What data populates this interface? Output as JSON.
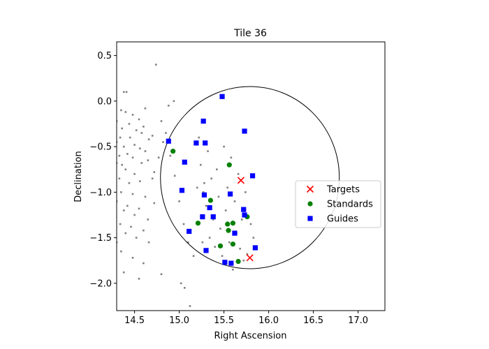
{
  "chart_data": {
    "type": "scatter",
    "title": "Tile 36",
    "xlabel": "Right Ascension",
    "ylabel": "Declination",
    "xlim": [
      14.3,
      17.3
    ],
    "ylim": [
      -2.3,
      0.65
    ],
    "xticks": [
      14.5,
      15.0,
      15.5,
      16.0,
      16.5,
      17.0
    ],
    "xtick_labels": [
      "14.5",
      "15.0",
      "15.5",
      "16.0",
      "16.5",
      "17.0"
    ],
    "yticks": [
      0.5,
      0.0,
      -0.5,
      -1.0,
      -1.5,
      -2.0
    ],
    "ytick_labels": [
      "0.5",
      "0.0",
      "−0.5",
      "−1.0",
      "−1.5",
      "−2.0"
    ],
    "grid": false,
    "legend_position": "right",
    "tile_circle": {
      "center": [
        15.79,
        -0.84
      ],
      "radius": 1.0
    },
    "background_points": {
      "color": "#808080",
      "points": [
        [
          14.74,
          0.4
        ],
        [
          14.38,
          0.1
        ],
        [
          14.41,
          0.1
        ],
        [
          14.94,
          0.0
        ],
        [
          14.88,
          -0.05
        ],
        [
          14.62,
          -0.08
        ],
        [
          14.35,
          -0.1
        ],
        [
          14.4,
          -0.12
        ],
        [
          14.48,
          -0.15
        ],
        [
          14.55,
          -0.2
        ],
        [
          14.3,
          -0.22
        ],
        [
          14.44,
          -0.25
        ],
        [
          14.6,
          -0.28
        ],
        [
          14.8,
          -0.22
        ],
        [
          14.36,
          -0.3
        ],
        [
          14.52,
          -0.32
        ],
        [
          14.58,
          -0.35
        ],
        [
          14.7,
          -0.38
        ],
        [
          14.34,
          -0.4
        ],
        [
          14.45,
          -0.4
        ],
        [
          14.66,
          -0.42
        ],
        [
          14.3,
          -0.45
        ],
        [
          14.38,
          -0.5
        ],
        [
          14.5,
          -0.48
        ],
        [
          14.56,
          -0.52
        ],
        [
          14.62,
          -0.55
        ],
        [
          14.42,
          -0.58
        ],
        [
          14.33,
          -0.6
        ],
        [
          14.48,
          -0.62
        ],
        [
          14.3,
          -0.68
        ],
        [
          14.36,
          -0.7
        ],
        [
          14.58,
          -0.68
        ],
        [
          14.65,
          -0.65
        ],
        [
          14.4,
          -0.75
        ],
        [
          14.5,
          -0.8
        ],
        [
          14.33,
          -0.85
        ],
        [
          14.44,
          -0.9
        ],
        [
          14.56,
          -0.88
        ],
        [
          14.7,
          -0.85
        ],
        [
          14.35,
          -1.0
        ],
        [
          14.48,
          -1.02
        ],
        [
          14.62,
          -1.05
        ],
        [
          14.3,
          -1.1
        ],
        [
          14.42,
          -1.15
        ],
        [
          14.55,
          -1.18
        ],
        [
          14.72,
          -1.12
        ],
        [
          14.38,
          -1.2
        ],
        [
          14.5,
          -1.25
        ],
        [
          14.65,
          -1.3
        ],
        [
          14.34,
          -1.35
        ],
        [
          14.46,
          -1.38
        ],
        [
          14.6,
          -1.42
        ],
        [
          14.4,
          -1.45
        ],
        [
          14.3,
          -1.55
        ],
        [
          14.52,
          -1.5
        ],
        [
          14.66,
          -1.55
        ],
        [
          14.35,
          -1.65
        ],
        [
          14.48,
          -1.72
        ],
        [
          14.6,
          -1.78
        ],
        [
          14.38,
          -1.88
        ],
        [
          14.55,
          -1.95
        ],
        [
          14.8,
          -1.9
        ],
        [
          14.28,
          -2.05
        ],
        [
          14.72,
          -0.78
        ],
        [
          14.77,
          -0.62
        ],
        [
          14.82,
          -0.45
        ],
        [
          14.85,
          -0.35
        ],
        [
          14.9,
          -0.6
        ],
        [
          14.95,
          -0.82
        ],
        [
          15.0,
          -1.1
        ],
        [
          15.05,
          -1.35
        ],
        [
          15.1,
          -1.55
        ],
        [
          15.02,
          -2.0
        ],
        [
          15.06,
          -2.05
        ],
        [
          15.12,
          -2.25
        ],
        [
          15.16,
          -1.7
        ],
        [
          15.2,
          -0.95
        ],
        [
          15.22,
          -0.4
        ],
        [
          15.24,
          -0.7
        ],
        [
          15.27,
          -1.0
        ],
        [
          15.3,
          -1.15
        ],
        [
          15.32,
          -0.55
        ],
        [
          15.34,
          -1.5
        ],
        [
          15.36,
          -0.85
        ],
        [
          15.38,
          -1.3
        ],
        [
          15.4,
          -1.6
        ],
        [
          15.42,
          -0.75
        ],
        [
          15.44,
          -1.05
        ],
        [
          15.46,
          -1.4
        ],
        [
          15.48,
          -1.7
        ],
        [
          15.5,
          -0.5
        ],
        [
          15.52,
          -1.2
        ],
        [
          15.54,
          -0.95
        ],
        [
          15.56,
          -1.55
        ],
        [
          15.58,
          -0.62
        ],
        [
          15.6,
          -1.85
        ],
        [
          15.62,
          -1.1
        ],
        [
          15.64,
          -1.45
        ],
        [
          15.66,
          -0.8
        ],
        [
          15.68,
          -1.62
        ],
        [
          15.7,
          -1.3
        ],
        [
          15.72,
          -1.75
        ],
        [
          15.74,
          -1.0
        ],
        [
          15.76,
          -1.68
        ],
        [
          15.8,
          -1.35
        ],
        [
          15.83,
          -1.5
        ],
        [
          15.26,
          -1.55
        ],
        [
          15.28,
          -0.9
        ]
      ]
    },
    "series": [
      {
        "name": "Targets",
        "marker": "x",
        "color": "#ff0000",
        "points": [
          [
            15.69,
            -0.87
          ],
          [
            15.79,
            -1.72
          ]
        ]
      },
      {
        "name": "Standards",
        "marker": "circle",
        "color": "#008000",
        "points": [
          [
            14.93,
            -0.55
          ],
          [
            15.56,
            -0.7
          ],
          [
            15.35,
            -1.09
          ],
          [
            15.21,
            -1.34
          ],
          [
            15.54,
            -1.35
          ],
          [
            15.6,
            -1.34
          ],
          [
            15.55,
            -1.42
          ],
          [
            15.76,
            -1.27
          ],
          [
            15.46,
            -1.59
          ],
          [
            15.6,
            -1.57
          ],
          [
            15.66,
            -1.76
          ]
        ]
      },
      {
        "name": "Guides",
        "marker": "square",
        "color": "#0000ff",
        "points": [
          [
            15.48,
            0.05
          ],
          [
            15.27,
            -0.22
          ],
          [
            15.73,
            -0.33
          ],
          [
            14.88,
            -0.44
          ],
          [
            15.19,
            -0.46
          ],
          [
            15.29,
            -0.46
          ],
          [
            15.06,
            -0.67
          ],
          [
            15.82,
            -0.82
          ],
          [
            15.03,
            -0.98
          ],
          [
            15.28,
            -1.03
          ],
          [
            15.57,
            -1.02
          ],
          [
            15.34,
            -1.17
          ],
          [
            15.72,
            -1.19
          ],
          [
            15.26,
            -1.27
          ],
          [
            15.38,
            -1.27
          ],
          [
            15.73,
            -1.25
          ],
          [
            15.11,
            -1.43
          ],
          [
            15.62,
            -1.45
          ],
          [
            15.3,
            -1.64
          ],
          [
            15.85,
            -1.61
          ],
          [
            15.51,
            -1.77
          ],
          [
            15.58,
            -1.78
          ]
        ]
      }
    ]
  }
}
